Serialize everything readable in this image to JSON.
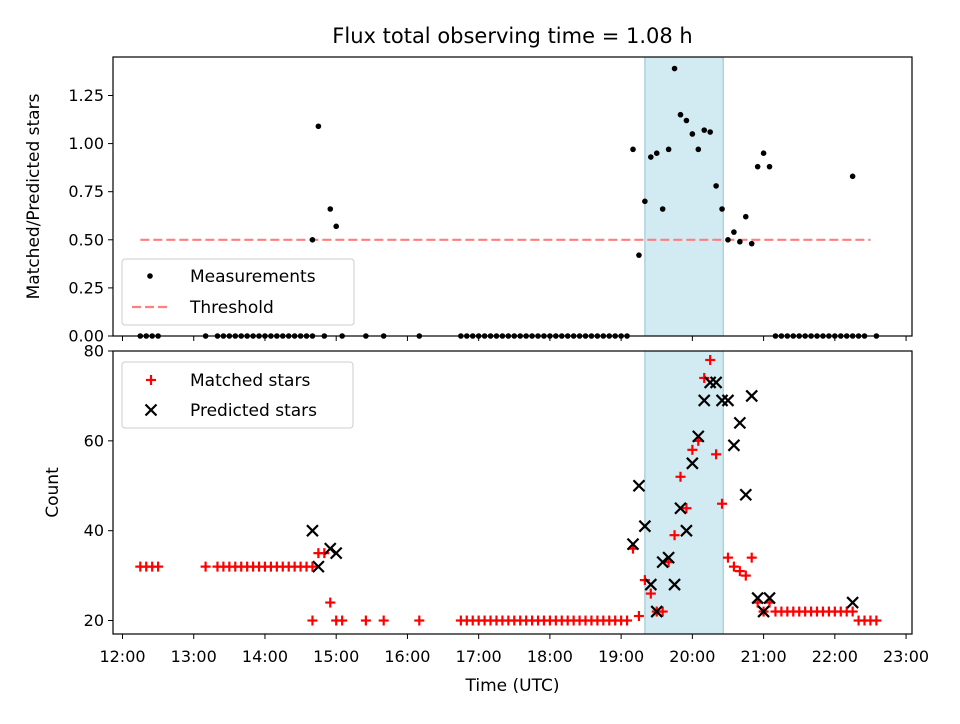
{
  "chart_data": [
    {
      "type": "scatter",
      "title": "Flux total observing time = 1.08 h",
      "xlabel": "",
      "ylabel": "Matched/Predicted stars",
      "ylim": [
        0,
        1.45
      ],
      "yticks": [
        "0.00",
        "0.25",
        "0.50",
        "0.75",
        "1.00",
        "1.25"
      ],
      "xlim": [
        "11:52",
        "23:05"
      ],
      "shaded_region": [
        "19:20",
        "20:26"
      ],
      "legend": {
        "position": "lower-left",
        "entries": [
          "Measurements",
          "Threshold"
        ]
      },
      "threshold": {
        "name": "Threshold",
        "value": 0.5,
        "x": [
          "12:15",
          "22:30"
        ],
        "color": "#ff7f7f"
      },
      "series": [
        {
          "name": "Measurements",
          "color": "#000000",
          "points": [
            [
              "12:15",
              0
            ],
            [
              "12:20",
              0
            ],
            [
              "12:25",
              0
            ],
            [
              "12:30",
              0
            ],
            [
              "13:10",
              0
            ],
            [
              "13:20",
              0
            ],
            [
              "13:25",
              0
            ],
            [
              "13:30",
              0
            ],
            [
              "13:35",
              0
            ],
            [
              "13:40",
              0
            ],
            [
              "13:45",
              0
            ],
            [
              "13:50",
              0
            ],
            [
              "13:55",
              0
            ],
            [
              "14:00",
              0
            ],
            [
              "14:05",
              0
            ],
            [
              "14:10",
              0
            ],
            [
              "14:15",
              0
            ],
            [
              "14:20",
              0
            ],
            [
              "14:25",
              0
            ],
            [
              "14:30",
              0
            ],
            [
              "14:35",
              0
            ],
            [
              "14:40",
              0
            ],
            [
              "14:40",
              0.5
            ],
            [
              "14:45",
              1.09
            ],
            [
              "14:50",
              0
            ],
            [
              "14:55",
              0.66
            ],
            [
              "15:00",
              0.57
            ],
            [
              "15:05",
              0
            ],
            [
              "15:25",
              0
            ],
            [
              "15:40",
              0
            ],
            [
              "16:10",
              0
            ],
            [
              "16:45",
              0
            ],
            [
              "16:50",
              0
            ],
            [
              "16:55",
              0
            ],
            [
              "17:00",
              0
            ],
            [
              "17:05",
              0
            ],
            [
              "17:10",
              0
            ],
            [
              "17:15",
              0
            ],
            [
              "17:20",
              0
            ],
            [
              "17:25",
              0
            ],
            [
              "17:30",
              0
            ],
            [
              "17:35",
              0
            ],
            [
              "17:40",
              0
            ],
            [
              "17:45",
              0
            ],
            [
              "17:50",
              0
            ],
            [
              "17:55",
              0
            ],
            [
              "18:00",
              0
            ],
            [
              "18:05",
              0
            ],
            [
              "18:10",
              0
            ],
            [
              "18:15",
              0
            ],
            [
              "18:20",
              0
            ],
            [
              "18:25",
              0
            ],
            [
              "18:30",
              0
            ],
            [
              "18:35",
              0
            ],
            [
              "18:40",
              0
            ],
            [
              "18:45",
              0
            ],
            [
              "18:50",
              0
            ],
            [
              "18:55",
              0
            ],
            [
              "19:00",
              0
            ],
            [
              "19:05",
              0
            ],
            [
              "19:10",
              0.97
            ],
            [
              "19:15",
              0.42
            ],
            [
              "19:20",
              0.7
            ],
            [
              "19:25",
              0.93
            ],
            [
              "19:30",
              0.95
            ],
            [
              "19:35",
              0.66
            ],
            [
              "19:40",
              0.97
            ],
            [
              "19:45",
              1.39
            ],
            [
              "19:50",
              1.15
            ],
            [
              "19:55",
              1.12
            ],
            [
              "20:00",
              1.05
            ],
            [
              "20:05",
              0.97
            ],
            [
              "20:10",
              1.07
            ],
            [
              "20:15",
              1.06
            ],
            [
              "20:20",
              0.78
            ],
            [
              "20:25",
              0.66
            ],
            [
              "20:30",
              0.5
            ],
            [
              "20:35",
              0.54
            ],
            [
              "20:40",
              0.49
            ],
            [
              "20:45",
              0.62
            ],
            [
              "20:50",
              0.48
            ],
            [
              "20:55",
              0.88
            ],
            [
              "21:00",
              0.95
            ],
            [
              "21:05",
              0.88
            ],
            [
              "21:10",
              0
            ],
            [
              "21:15",
              0
            ],
            [
              "21:20",
              0
            ],
            [
              "21:25",
              0
            ],
            [
              "21:30",
              0
            ],
            [
              "21:35",
              0
            ],
            [
              "21:40",
              0
            ],
            [
              "21:45",
              0
            ],
            [
              "21:50",
              0
            ],
            [
              "21:55",
              0
            ],
            [
              "22:00",
              0
            ],
            [
              "22:05",
              0
            ],
            [
              "22:10",
              0
            ],
            [
              "22:15",
              0
            ],
            [
              "22:15",
              0.83
            ],
            [
              "22:20",
              0
            ],
            [
              "22:25",
              0
            ],
            [
              "22:35",
              0
            ]
          ]
        }
      ]
    },
    {
      "type": "scatter",
      "title": "",
      "xlabel": "Time (UTC)",
      "ylabel": "Count",
      "ylim": [
        17,
        80
      ],
      "yticks": [
        "20",
        "40",
        "60",
        "80"
      ],
      "xlim": [
        "11:52",
        "23:05"
      ],
      "xticks": [
        "12:00",
        "13:00",
        "14:00",
        "15:00",
        "16:00",
        "17:00",
        "18:00",
        "19:00",
        "20:00",
        "21:00",
        "22:00",
        "23:00"
      ],
      "shaded_region": [
        "19:20",
        "20:26"
      ],
      "legend": {
        "position": "upper-left",
        "entries": [
          "Matched stars",
          "Predicted stars"
        ]
      },
      "series": [
        {
          "name": "Matched stars",
          "marker": "plus",
          "color": "#ff0000",
          "points": [
            [
              "12:15",
              32
            ],
            [
              "12:20",
              32
            ],
            [
              "12:25",
              32
            ],
            [
              "12:30",
              32
            ],
            [
              "13:10",
              32
            ],
            [
              "13:20",
              32
            ],
            [
              "13:25",
              32
            ],
            [
              "13:30",
              32
            ],
            [
              "13:35",
              32
            ],
            [
              "13:40",
              32
            ],
            [
              "13:45",
              32
            ],
            [
              "13:50",
              32
            ],
            [
              "13:55",
              32
            ],
            [
              "14:00",
              32
            ],
            [
              "14:05",
              32
            ],
            [
              "14:10",
              32
            ],
            [
              "14:15",
              32
            ],
            [
              "14:20",
              32
            ],
            [
              "14:25",
              32
            ],
            [
              "14:30",
              32
            ],
            [
              "14:35",
              32
            ],
            [
              "14:40",
              32
            ],
            [
              "14:40",
              20
            ],
            [
              "14:45",
              35
            ],
            [
              "14:50",
              35
            ],
            [
              "14:55",
              24
            ],
            [
              "15:00",
              20
            ],
            [
              "15:05",
              20
            ],
            [
              "15:25",
              20
            ],
            [
              "15:40",
              20
            ],
            [
              "16:10",
              20
            ],
            [
              "16:45",
              20
            ],
            [
              "16:50",
              20
            ],
            [
              "16:55",
              20
            ],
            [
              "17:00",
              20
            ],
            [
              "17:05",
              20
            ],
            [
              "17:10",
              20
            ],
            [
              "17:15",
              20
            ],
            [
              "17:20",
              20
            ],
            [
              "17:25",
              20
            ],
            [
              "17:30",
              20
            ],
            [
              "17:35",
              20
            ],
            [
              "17:40",
              20
            ],
            [
              "17:45",
              20
            ],
            [
              "17:50",
              20
            ],
            [
              "17:55",
              20
            ],
            [
              "18:00",
              20
            ],
            [
              "18:05",
              20
            ],
            [
              "18:10",
              20
            ],
            [
              "18:15",
              20
            ],
            [
              "18:20",
              20
            ],
            [
              "18:25",
              20
            ],
            [
              "18:30",
              20
            ],
            [
              "18:35",
              20
            ],
            [
              "18:40",
              20
            ],
            [
              "18:45",
              20
            ],
            [
              "18:50",
              20
            ],
            [
              "18:55",
              20
            ],
            [
              "19:00",
              20
            ],
            [
              "19:05",
              20
            ],
            [
              "19:10",
              36
            ],
            [
              "19:15",
              21
            ],
            [
              "19:20",
              29
            ],
            [
              "19:25",
              26
            ],
            [
              "19:30",
              22
            ],
            [
              "19:35",
              22
            ],
            [
              "19:40",
              33
            ],
            [
              "19:45",
              39
            ],
            [
              "19:50",
              52
            ],
            [
              "19:55",
              45
            ],
            [
              "20:00",
              58
            ],
            [
              "20:05",
              60
            ],
            [
              "20:10",
              74
            ],
            [
              "20:15",
              78
            ],
            [
              "20:20",
              57
            ],
            [
              "20:25",
              46
            ],
            [
              "20:30",
              34
            ],
            [
              "20:35",
              32
            ],
            [
              "20:40",
              31
            ],
            [
              "20:45",
              30
            ],
            [
              "20:50",
              34
            ],
            [
              "20:55",
              24
            ],
            [
              "21:00",
              22
            ],
            [
              "21:05",
              24
            ],
            [
              "21:10",
              22
            ],
            [
              "21:15",
              22
            ],
            [
              "21:20",
              22
            ],
            [
              "21:25",
              22
            ],
            [
              "21:30",
              22
            ],
            [
              "21:35",
              22
            ],
            [
              "21:40",
              22
            ],
            [
              "21:45",
              22
            ],
            [
              "21:50",
              22
            ],
            [
              "21:55",
              22
            ],
            [
              "22:00",
              22
            ],
            [
              "22:05",
              22
            ],
            [
              "22:10",
              22
            ],
            [
              "22:15",
              22
            ],
            [
              "22:20",
              20
            ],
            [
              "22:25",
              20
            ],
            [
              "22:30",
              20
            ],
            [
              "22:35",
              20
            ]
          ]
        },
        {
          "name": "Predicted stars",
          "marker": "x",
          "color": "#000000",
          "points": [
            [
              "14:40",
              40
            ],
            [
              "14:45",
              32
            ],
            [
              "14:55",
              36
            ],
            [
              "15:00",
              35
            ],
            [
              "19:10",
              37
            ],
            [
              "19:15",
              50
            ],
            [
              "19:20",
              41
            ],
            [
              "19:25",
              28
            ],
            [
              "19:30",
              22
            ],
            [
              "19:35",
              33
            ],
            [
              "19:40",
              34
            ],
            [
              "19:45",
              28
            ],
            [
              "19:50",
              45
            ],
            [
              "19:55",
              40
            ],
            [
              "20:00",
              55
            ],
            [
              "20:05",
              61
            ],
            [
              "20:10",
              69
            ],
            [
              "20:15",
              73
            ],
            [
              "20:20",
              73
            ],
            [
              "20:25",
              69
            ],
            [
              "20:30",
              69
            ],
            [
              "20:35",
              59
            ],
            [
              "20:40",
              64
            ],
            [
              "20:45",
              48
            ],
            [
              "20:50",
              70
            ],
            [
              "20:55",
              25
            ],
            [
              "21:00",
              22
            ],
            [
              "21:05",
              25
            ],
            [
              "22:15",
              24
            ]
          ]
        }
      ]
    }
  ]
}
